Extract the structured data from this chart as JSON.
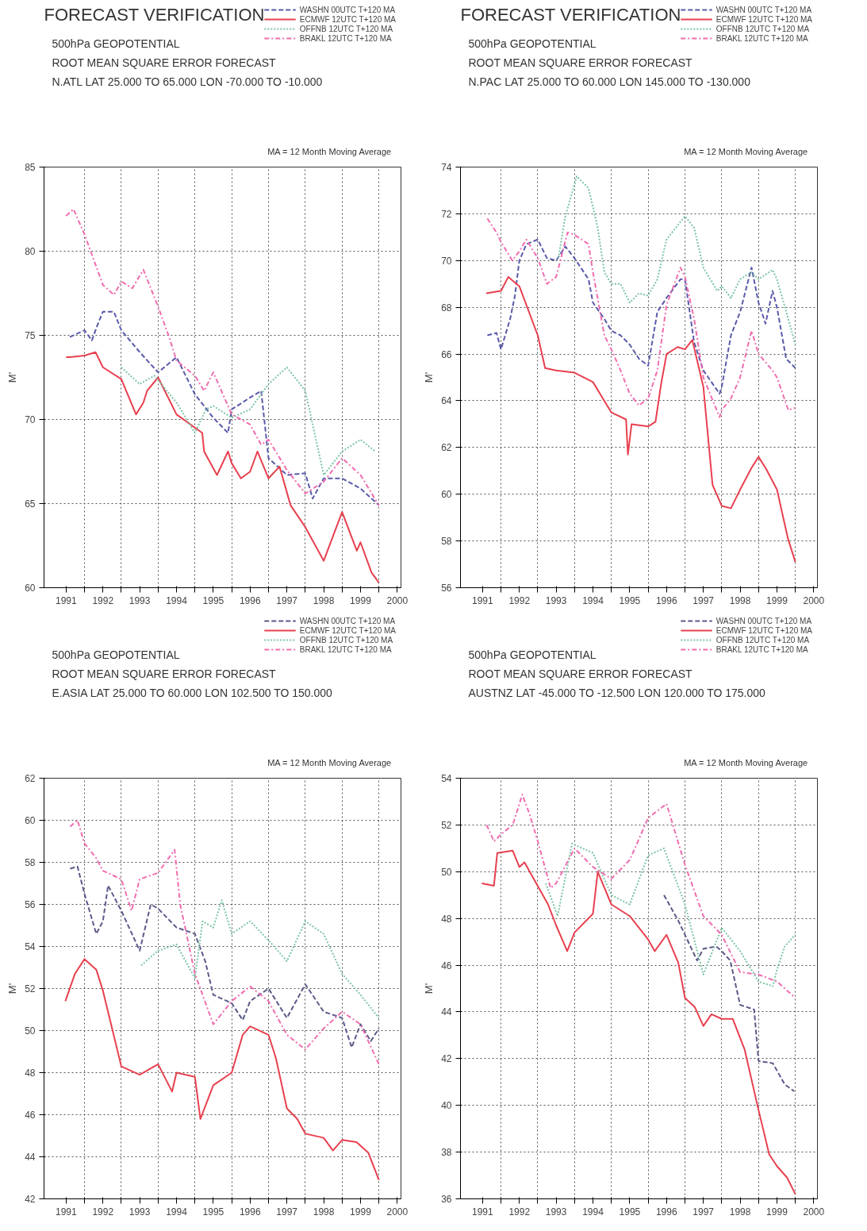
{
  "chart_data": [
    {
      "type": "line",
      "title": "FORECAST VERIFICATION",
      "subtitle": "500hPa    GEOPOTENTIAL\nROOT MEAN SQUARE ERROR    FORECAST\nN.ATL   LAT 25.000 TO 65.000  LON -70.000 TO -10.000",
      "ylabel": "M'",
      "annotations": [
        "MA = 12 Month   Moving Average"
      ],
      "xlim": [
        1990.9,
        2000.6
      ],
      "xticks": [
        {
          "value": 1991.5,
          "label": "1991"
        },
        {
          "value": 1992.5,
          "label": "1992"
        },
        {
          "value": 1993.5,
          "label": "1993"
        },
        {
          "value": 1994.5,
          "label": "1994"
        },
        {
          "value": 1995.5,
          "label": "1995"
        },
        {
          "value": 1996.5,
          "label": "1996"
        },
        {
          "value": 1997.5,
          "label": "1997"
        },
        {
          "value": 1998.5,
          "label": "1998"
        },
        {
          "value": 1999.5,
          "label": "1999"
        },
        {
          "value": 2000.5,
          "label": "2000"
        },
        {
          "value": 1992,
          "label": null
        },
        {
          "value": 1993,
          "label": null
        },
        {
          "value": 1994,
          "label": null
        },
        {
          "value": 1995,
          "label": null
        },
        {
          "value": 1996,
          "label": null
        },
        {
          "value": 1997,
          "label": null
        },
        {
          "value": 1998,
          "label": null
        },
        {
          "value": 1999,
          "label": null
        },
        {
          "value": 2000,
          "label": null
        }
      ],
      "ylim": [
        60,
        85
      ],
      "yticks": [
        60,
        65,
        70,
        75,
        80,
        85
      ],
      "grid": true,
      "legend": "top right",
      "series": [
        {
          "name": "WASHN 00UTC T+120 MA",
          "color": "#5a5aaa",
          "line_style": "dashed",
          "x": [
            1991.6,
            1992,
            1992.2,
            1992.35,
            1992.5,
            1992.8,
            1993,
            1993.5,
            1994,
            1994.5,
            1995,
            1995.5,
            1995.9,
            1996,
            1996.5,
            1996.8,
            1997,
            1997.5,
            1998,
            1998.2,
            1998.5,
            1999,
            1999.5,
            2000
          ],
          "values": [
            74.9,
            75.3,
            74.7,
            75.6,
            76.4,
            76.4,
            75.3,
            74.0,
            72.8,
            73.7,
            71.5,
            70.1,
            69.2,
            70.6,
            71.3,
            71.7,
            67.7,
            66.7,
            66.8,
            65.3,
            66.5,
            66.5,
            65.9,
            64.9
          ]
        },
        {
          "name": "ECMWF 12UTC T+120 MA",
          "color": "#e8404f",
          "line_style": "solid",
          "x": [
            1991.5,
            1991.6,
            1992,
            1992.3,
            1992.5,
            1993,
            1993.4,
            1993.6,
            1993.7,
            1994,
            1994.5,
            1995.2,
            1995.25,
            1995.6,
            1995.9,
            1996,
            1996.25,
            1996.5,
            1996.7,
            1997,
            1997.3,
            1997.6,
            1998,
            1998.5,
            1999,
            1999.4,
            1999.5,
            1999.8,
            2000
          ],
          "values": [
            73.7,
            73.7,
            73.8,
            74.0,
            73.1,
            72.4,
            70.3,
            71.0,
            71.7,
            72.5,
            70.3,
            69.2,
            68.1,
            66.7,
            68.1,
            67.4,
            66.5,
            66.9,
            68.1,
            66.5,
            67.2,
            64.9,
            63.6,
            61.6,
            64.5,
            62.2,
            62.7,
            60.9,
            60.3
          ]
        },
        {
          "name": "OFFNB 12UTC T+120 MA",
          "color": "#7cc4a4",
          "line_style": "dotted",
          "x": [
            1993.0,
            1993.5,
            1993.9,
            1994.5,
            1995,
            1995.3,
            1995.5,
            1996,
            1996.5,
            1997,
            1997.5,
            1998,
            1998.5,
            1999,
            1999.5,
            1999.9
          ],
          "values": [
            73.1,
            72.1,
            72.6,
            71.0,
            69.2,
            70.6,
            70.8,
            70.1,
            70.6,
            72.1,
            73.1,
            71.7,
            66.7,
            68.1,
            68.8,
            68.1
          ]
        },
        {
          "name": "BRAKL 12UTC T+120 MA",
          "color": "#f06cb0",
          "line_style": "dashdot",
          "x": [
            1991.5,
            1991.7,
            1992,
            1992.35,
            1992.5,
            1992.8,
            1993,
            1993.3,
            1993.6,
            1994,
            1994.3,
            1994.5,
            1995,
            1995.25,
            1995.5,
            1996,
            1996.5,
            1996.8,
            1997,
            1997.5,
            1998,
            1998.5,
            1999,
            1999.5,
            2000
          ],
          "values": [
            82.1,
            82.5,
            81.0,
            78.9,
            78.0,
            77.4,
            78.2,
            77.8,
            78.9,
            76.7,
            74.9,
            73.5,
            72.6,
            71.7,
            72.8,
            70.3,
            69.7,
            68.5,
            68.8,
            67.0,
            65.6,
            66.3,
            67.7,
            66.7,
            64.9
          ]
        }
      ]
    },
    {
      "type": "line",
      "title": "FORECAST VERIFICATION",
      "subtitle": "500hPa    GEOPOTENTIAL\nROOT MEAN SQUARE ERROR    FORECAST\nN.PAC   LAT 25.000 TO 60.000  LON 145.000 TO -130.000",
      "ylabel": "M'",
      "annotations": [
        "MA = 12 Month   Moving Average"
      ],
      "xlim": [
        1990.9,
        2000.6
      ],
      "xticks": [
        {
          "value": 1991.5,
          "label": "1991"
        },
        {
          "value": 1992.5,
          "label": "1992"
        },
        {
          "value": 1993.5,
          "label": "1993"
        },
        {
          "value": 1994.5,
          "label": "1994"
        },
        {
          "value": 1995.5,
          "label": "1995"
        },
        {
          "value": 1996.5,
          "label": "1996"
        },
        {
          "value": 1997.5,
          "label": "1997"
        },
        {
          "value": 1998.5,
          "label": "1998"
        },
        {
          "value": 1999.5,
          "label": "1999"
        },
        {
          "value": 2000.5,
          "label": "2000"
        },
        {
          "value": 1992,
          "label": null
        },
        {
          "value": 1993,
          "label": null
        },
        {
          "value": 1994,
          "label": null
        },
        {
          "value": 1995,
          "label": null
        },
        {
          "value": 1996,
          "label": null
        },
        {
          "value": 1997,
          "label": null
        },
        {
          "value": 1998,
          "label": null
        },
        {
          "value": 1999,
          "label": null
        },
        {
          "value": 2000,
          "label": null
        }
      ],
      "ylim": [
        56,
        74
      ],
      "yticks": [
        56,
        58,
        60,
        62,
        64,
        66,
        68,
        70,
        72,
        74
      ],
      "grid": true,
      "legend": "top right",
      "series": [
        {
          "name": "WASHN 00UTC T+120 MA",
          "color": "#5a5aaa",
          "line_style": "dashed",
          "x": [
            1991.63,
            1991.88,
            1992,
            1992.25,
            1992.38,
            1992.5,
            1992.69,
            1993,
            1993.25,
            1993.5,
            1993.75,
            1994,
            1994.38,
            1994.5,
            1994.81,
            1995,
            1995.25,
            1995.5,
            1995.75,
            1996,
            1996.25,
            1996.5,
            1996.88,
            1997,
            1997.25,
            1997.5,
            1997.94,
            1998,
            1998.25,
            1998.5,
            1998.81,
            1999,
            1999.19,
            1999.38,
            1999.5,
            1999.75,
            2000
          ],
          "values": [
            66.8,
            66.9,
            66.2,
            67.5,
            68.5,
            70.0,
            70.7,
            70.9,
            70.1,
            70.0,
            70.6,
            70.1,
            69.2,
            68.2,
            67.5,
            67.0,
            66.8,
            66.4,
            65.8,
            65.5,
            67.8,
            68.4,
            69.2,
            69.2,
            66.5,
            65.3,
            64.3,
            64.6,
            66.8,
            67.8,
            69.7,
            68.2,
            67.3,
            68.7,
            68.0,
            65.8,
            65.4
          ]
        },
        {
          "name": "ECMWF 12UTC T+120 MA",
          "color": "#e8404f",
          "line_style": "solid",
          "x": [
            1991.6,
            1992,
            1992.2,
            1992.5,
            1993,
            1993.2,
            1993.5,
            1994,
            1994.5,
            1995,
            1995.4,
            1995.45,
            1995.55,
            1996,
            1996.2,
            1996.35,
            1996.5,
            1996.8,
            1997,
            1997.2,
            1997.5,
            1997.75,
            1998,
            1998.25,
            1998.5,
            1998.8,
            1999,
            1999.2,
            1999.5,
            1999.8,
            2000
          ],
          "values": [
            68.6,
            68.7,
            69.3,
            68.9,
            66.8,
            65.4,
            65.3,
            65.2,
            64.8,
            63.5,
            63.2,
            61.7,
            63.0,
            62.9,
            63.1,
            64.7,
            66.0,
            66.3,
            66.2,
            66.6,
            64.6,
            60.4,
            59.5,
            59.4,
            60.2,
            61.1,
            61.6,
            61.1,
            60.2,
            58.1,
            57.1
          ]
        },
        {
          "name": "OFFNB 12UTC T+120 MA",
          "color": "#7cc4a4",
          "line_style": "dotted",
          "x": [
            1993.56,
            1993.75,
            1994.06,
            1994.38,
            1994.63,
            1994.81,
            1995,
            1995.25,
            1995.5,
            1995.75,
            1996,
            1996.25,
            1996.5,
            1997,
            1997.25,
            1997.5,
            1997.88,
            1998,
            1998.25,
            1998.5,
            1998.81,
            1999,
            1999.38,
            1999.5,
            1999.81,
            2000
          ],
          "values": [
            70.1,
            71.9,
            73.6,
            73.1,
            71.4,
            69.5,
            69.0,
            69.0,
            68.2,
            68.6,
            68.5,
            69.2,
            70.9,
            71.9,
            71.4,
            69.7,
            68.7,
            68.9,
            68.4,
            69.2,
            69.5,
            69.2,
            69.6,
            69.2,
            67.5,
            66.4
          ]
        },
        {
          "name": "BRAKL 12UTC T+120 MA",
          "color": "#f06cb0",
          "line_style": "dashdot",
          "x": [
            1991.63,
            1991.88,
            1992,
            1992.31,
            1992.5,
            1992.69,
            1993,
            1993.25,
            1993.5,
            1993.81,
            1994,
            1994.38,
            1994.5,
            1994.81,
            1995,
            1995.25,
            1995.5,
            1995.75,
            1996,
            1996.25,
            1996.5,
            1996.88,
            1997,
            1997.25,
            1997.5,
            1997.94,
            1998,
            1998.25,
            1998.5,
            1998.81,
            1999,
            1999.38,
            1999.5,
            1999.81,
            2000
          ],
          "values": [
            71.8,
            71.2,
            70.8,
            70.0,
            70.4,
            70.9,
            70.1,
            69.0,
            69.3,
            71.2,
            71.1,
            70.7,
            69.5,
            66.8,
            66.2,
            65.3,
            64.3,
            63.8,
            64.1,
            65.3,
            68.1,
            69.7,
            69.3,
            67.5,
            65.0,
            63.3,
            63.6,
            64.1,
            65.0,
            67.0,
            66.0,
            65.3,
            65.0,
            63.6,
            63.7
          ]
        }
      ]
    },
    {
      "type": "line",
      "subtitle": "500hPa    GEOPOTENTIAL\nROOT MEAN SQUARE ERROR    FORECAST\nE.ASIA   LAT 25.000 TO 60.000  LON 102.500 TO 150.000",
      "ylabel": "M'",
      "annotations": [
        "MA = 12 Month   Moving Average"
      ],
      "xlim": [
        1990.9,
        2000.6
      ],
      "xticks": [
        {
          "value": 1991.5,
          "label": "1991"
        },
        {
          "value": 1992.5,
          "label": "1992"
        },
        {
          "value": 1993.5,
          "label": "1993"
        },
        {
          "value": 1994.5,
          "label": "1994"
        },
        {
          "value": 1995.5,
          "label": "1995"
        },
        {
          "value": 1996.5,
          "label": "1996"
        },
        {
          "value": 1997.5,
          "label": "1997"
        },
        {
          "value": 1998.5,
          "label": "1998"
        },
        {
          "value": 1999.5,
          "label": "1999"
        },
        {
          "value": 2000.5,
          "label": "2000"
        },
        {
          "value": 1992,
          "label": null
        },
        {
          "value": 1993,
          "label": null
        },
        {
          "value": 1994,
          "label": null
        },
        {
          "value": 1995,
          "label": null
        },
        {
          "value": 1996,
          "label": null
        },
        {
          "value": 1997,
          "label": null
        },
        {
          "value": 1998,
          "label": null
        },
        {
          "value": 1999,
          "label": null
        },
        {
          "value": 2000,
          "label": null
        }
      ],
      "ylim": [
        42,
        62
      ],
      "yticks": [
        42,
        44,
        46,
        48,
        50,
        52,
        54,
        56,
        58,
        60,
        62
      ],
      "grid": true,
      "legend": "top right",
      "series": [
        {
          "name": "WASHN 00UTC T+120 MA",
          "color": "#5a5a8a",
          "line_style": "dashed",
          "x": [
            1991.61,
            1991.81,
            1992,
            1992.32,
            1992.5,
            1992.64,
            1993,
            1993.5,
            1993.8,
            1994,
            1994.5,
            1995,
            1995.28,
            1995.5,
            1996,
            1996.3,
            1996.5,
            1997,
            1997.5,
            1998,
            1998.5,
            1999,
            1999.26,
            1999.5,
            1999.78,
            2000
          ],
          "values": [
            57.7,
            57.8,
            56.5,
            54.6,
            55.2,
            56.9,
            55.7,
            53.8,
            56.0,
            55.8,
            54.9,
            54.6,
            53.3,
            51.7,
            51.3,
            50.5,
            51.4,
            52.0,
            50.6,
            52.2,
            50.9,
            50.6,
            49.2,
            50.3,
            49.5,
            50.1
          ]
        },
        {
          "name": "ECMWF 12UTC T+120 MA",
          "color": "#e8404f",
          "line_style": "solid",
          "x": [
            1991.48,
            1991.74,
            1992,
            1992.32,
            1992.5,
            1993,
            1993.5,
            1994,
            1994.38,
            1994.5,
            1995,
            1995.15,
            1995.5,
            1996,
            1996.3,
            1996.5,
            1997,
            1997.2,
            1997.5,
            1997.78,
            1998,
            1998.5,
            1998.75,
            1999,
            1999.39,
            1999.71,
            2000
          ],
          "values": [
            51.4,
            52.7,
            53.4,
            52.9,
            51.9,
            48.3,
            47.9,
            48.4,
            47.1,
            48.0,
            47.8,
            45.8,
            47.4,
            48.0,
            49.8,
            50.2,
            49.8,
            48.7,
            46.3,
            45.8,
            45.1,
            44.9,
            44.3,
            44.8,
            44.7,
            44.2,
            42.9
          ]
        },
        {
          "name": "OFFNB 12UTC T+120 MA",
          "color": "#7cc4a4",
          "line_style": "dotted",
          "x": [
            1993.54,
            1994,
            1994.5,
            1995,
            1995.21,
            1995.5,
            1995.73,
            1996,
            1996.5,
            1997,
            1997.5,
            1998,
            1998.5,
            1999,
            1999.5,
            2000
          ],
          "values": [
            53.1,
            53.8,
            54.1,
            52.5,
            55.2,
            54.9,
            56.2,
            54.6,
            55.2,
            54.3,
            53.3,
            55.2,
            54.6,
            52.7,
            51.7,
            50.6
          ]
        },
        {
          "name": "BRAKL 12UTC T+120 MA",
          "color": "#f06cb0",
          "line_style": "dashdot",
          "x": [
            1991.61,
            1991.81,
            1992,
            1992.32,
            1992.5,
            1993,
            1993.28,
            1993.5,
            1994,
            1994.45,
            1994.6,
            1995,
            1995.5,
            1996,
            1996.5,
            1997,
            1997.5,
            1998,
            1998.5,
            1999,
            1999.5,
            2000
          ],
          "values": [
            59.7,
            60.0,
            58.9,
            58.2,
            57.6,
            57.2,
            55.7,
            57.2,
            57.5,
            58.6,
            56.0,
            52.7,
            50.3,
            51.4,
            52.1,
            51.4,
            49.8,
            49.1,
            50.1,
            50.9,
            50.3,
            48.4
          ]
        }
      ]
    },
    {
      "type": "line",
      "subtitle": "500hPa    GEOPOTENTIAL\nROOT MEAN SQUARE ERROR    FORECAST\nAUSTNZ   LAT -45.000 TO -12.500  LON 120.000 TO 175.000",
      "ylabel": "M'",
      "annotations": [
        "MA = 12 Month   Moving Average"
      ],
      "xlim": [
        1990.9,
        2000.6
      ],
      "xticks": [
        {
          "value": 1991.5,
          "label": "1991"
        },
        {
          "value": 1992.5,
          "label": "1992"
        },
        {
          "value": 1993.5,
          "label": "1993"
        },
        {
          "value": 1994.5,
          "label": "1994"
        },
        {
          "value": 1995.5,
          "label": "1995"
        },
        {
          "value": 1996.5,
          "label": "1996"
        },
        {
          "value": 1997.5,
          "label": "1997"
        },
        {
          "value": 1998.5,
          "label": "1998"
        },
        {
          "value": 1999.5,
          "label": "1999"
        },
        {
          "value": 2000.5,
          "label": "2000"
        },
        {
          "value": 1992,
          "label": null
        },
        {
          "value": 1993,
          "label": null
        },
        {
          "value": 1994,
          "label": null
        },
        {
          "value": 1995,
          "label": null
        },
        {
          "value": 1996,
          "label": null
        },
        {
          "value": 1997,
          "label": null
        },
        {
          "value": 1998,
          "label": null
        },
        {
          "value": 1999,
          "label": null
        },
        {
          "value": 2000,
          "label": null
        }
      ],
      "ylim": [
        36,
        54
      ],
      "yticks": [
        36,
        38,
        40,
        42,
        44,
        46,
        48,
        50,
        52,
        54
      ],
      "grid": true,
      "legend": "top right",
      "series": [
        {
          "name": "WASHN 00UTC T+120 MA",
          "color": "#5a5a8a",
          "line_style": "dashed",
          "x": [
            1996.43,
            1996.82,
            1997.33,
            1997.5,
            1997.85,
            1998,
            1998.23,
            1998.5,
            1998.88,
            1999,
            1999.39,
            1999.71,
            1999.97
          ],
          "values": [
            49.0,
            47.9,
            46.2,
            46.7,
            46.8,
            46.6,
            46.2,
            44.3,
            44.1,
            41.9,
            41.8,
            40.9,
            40.6
          ]
        },
        {
          "name": "ECMWF 12UTC T+120 MA",
          "color": "#e8404f",
          "line_style": "solid",
          "x": [
            1991.48,
            1991.81,
            1991.9,
            1992.32,
            1992.5,
            1992.64,
            1992.96,
            1993.28,
            1993.5,
            1993.8,
            1994,
            1994.5,
            1994.63,
            1995,
            1995.5,
            1996,
            1996.18,
            1996.5,
            1996.82,
            1997,
            1997.27,
            1997.5,
            1997.72,
            1998,
            1998.3,
            1998.62,
            1999,
            1999.29,
            1999.5,
            1999.78,
            2000
          ],
          "values": [
            49.5,
            49.4,
            50.8,
            50.9,
            50.2,
            50.4,
            49.5,
            48.6,
            47.7,
            46.6,
            47.4,
            48.2,
            50.0,
            48.6,
            48.1,
            47.1,
            46.6,
            47.3,
            46.1,
            44.6,
            44.2,
            43.4,
            43.9,
            43.7,
            43.7,
            42.4,
            39.8,
            37.9,
            37.4,
            36.9,
            36.2
          ]
        },
        {
          "name": "OFFNB 12UTC T+120 MA",
          "color": "#7cc4a4",
          "line_style": "dotted",
          "x": [
            1993.22,
            1993.54,
            1993.93,
            1994.5,
            1995,
            1995.5,
            1996,
            1996.43,
            1997,
            1997.5,
            1998,
            1998.5,
            1999,
            1999.39,
            1999.5,
            1999.71,
            2000
          ],
          "values": [
            49.5,
            48.1,
            51.2,
            50.8,
            49.0,
            48.6,
            50.7,
            51.0,
            48.6,
            45.6,
            47.6,
            46.6,
            45.3,
            45.1,
            45.8,
            46.8,
            47.3
          ]
        },
        {
          "name": "BRAKL 12UTC T+120 MA",
          "color": "#f06cb0",
          "line_style": "dashdot",
          "x": [
            1991.61,
            1991.81,
            1992,
            1992.32,
            1992.58,
            1992.77,
            1993,
            1993.35,
            1993.5,
            1994,
            1994.5,
            1995,
            1995.5,
            1996,
            1996.5,
            1997,
            1997.5,
            1998,
            1998.5,
            1999,
            1999.5,
            2000
          ],
          "values": [
            52.0,
            51.3,
            51.6,
            52.0,
            53.3,
            52.5,
            51.3,
            49.3,
            49.5,
            51.0,
            50.2,
            49.7,
            50.5,
            52.3,
            52.9,
            50.3,
            48.1,
            47.3,
            45.7,
            45.6,
            45.3,
            44.6
          ]
        }
      ]
    }
  ]
}
